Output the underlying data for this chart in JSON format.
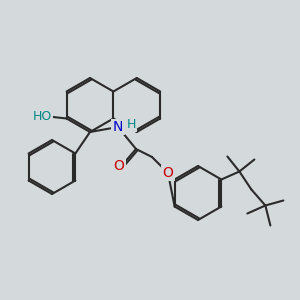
{
  "background_color": "#d4d9dc",
  "bond_color": "#2a2a2a",
  "bond_width": 1.5,
  "atom_colors": {
    "O": "#cc0000",
    "N": "#0000cc",
    "H_on_N": "#008888",
    "H_on_O": "#008888",
    "C": "#2a2a2a"
  },
  "font_size": 9
}
